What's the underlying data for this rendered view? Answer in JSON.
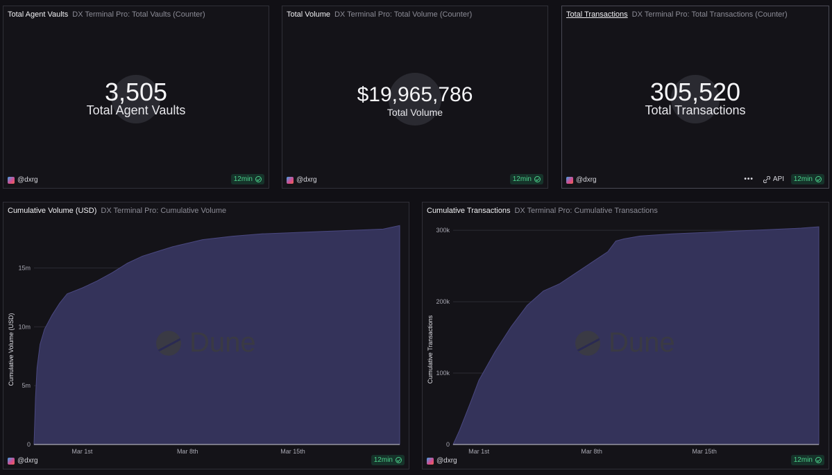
{
  "counters": [
    {
      "title": "Total Agent Vaults",
      "subtitle": "DX Terminal Pro: Total Vaults (Counter)",
      "value": "3,505",
      "label": "Total Agent Vaults",
      "owner": "@dxrg",
      "refresh": "12min"
    },
    {
      "title": "Total Volume",
      "subtitle": "DX Terminal Pro: Total Volume (Counter)",
      "value": "$19,965,786",
      "label": "Total Volume",
      "owner": "@dxrg",
      "refresh": "12min"
    },
    {
      "title": "Total Transactions",
      "subtitle": "DX Terminal Pro: Total Transactions (Counter)",
      "value": "305,520",
      "label": "Total Transactions",
      "owner": "@dxrg",
      "refresh": "12min",
      "tools": {
        "more": "•••",
        "api": "API"
      }
    }
  ],
  "charts": [
    {
      "title": "Cumulative Volume (USD)",
      "subtitle": "DX Terminal Pro: Cumulative Volume",
      "owner": "@dxrg",
      "refresh": "12min",
      "watermark": "Dune"
    },
    {
      "title": "Cumulative Transactions",
      "subtitle": "DX Terminal Pro: Cumulative Transactions",
      "owner": "@dxrg",
      "refresh": "12min",
      "watermark": "Dune"
    }
  ],
  "colors": {
    "area": "#34335a",
    "area_line": "#4a4880",
    "success": "#4bd08a"
  },
  "chart_data": [
    {
      "type": "area",
      "ylabel": "Cumulative Volume (USD)",
      "xlabel": "",
      "x_ticks": [
        "Mar 1st",
        "Mar 8th",
        "Mar 15th"
      ],
      "y_ticks": [
        "0",
        "5m",
        "10m",
        "15m"
      ],
      "ylim": [
        0,
        18500000
      ],
      "grid": true,
      "x": [
        -3.2,
        -3.1,
        -3.0,
        -2.8,
        -2.5,
        -2,
        -1.5,
        -1,
        0,
        1,
        2,
        3,
        4,
        5,
        6,
        7,
        8,
        10,
        12,
        14,
        16,
        18,
        20,
        21.1
      ],
      "y": [
        0,
        4000000,
        6500000,
        8500000,
        9800000,
        11000000,
        12000000,
        12800000,
        13300000,
        13900000,
        14600000,
        15400000,
        16000000,
        16400000,
        16800000,
        17100000,
        17400000,
        17700000,
        17900000,
        18000000,
        18100000,
        18200000,
        18300000,
        18600000
      ]
    },
    {
      "type": "area",
      "ylabel": "Cumulative Transactions",
      "xlabel": "",
      "x_ticks": [
        "Mar 1st",
        "Mar 8th",
        "Mar 15th"
      ],
      "y_ticks": [
        "0",
        "100k",
        "200k",
        "300k"
      ],
      "ylim": [
        0,
        305000
      ],
      "grid": true,
      "x": [
        -1.6,
        -1.2,
        -0.5,
        0,
        1,
        2,
        3,
        4,
        5,
        6,
        7,
        8,
        8.5,
        9,
        10,
        12,
        14,
        16,
        18,
        20,
        21.1
      ],
      "y": [
        0,
        20000,
        60000,
        90000,
        130000,
        165000,
        195000,
        215000,
        225000,
        240000,
        255000,
        270000,
        285000,
        288000,
        292000,
        295000,
        297000,
        299000,
        301000,
        303000,
        305000
      ]
    }
  ]
}
